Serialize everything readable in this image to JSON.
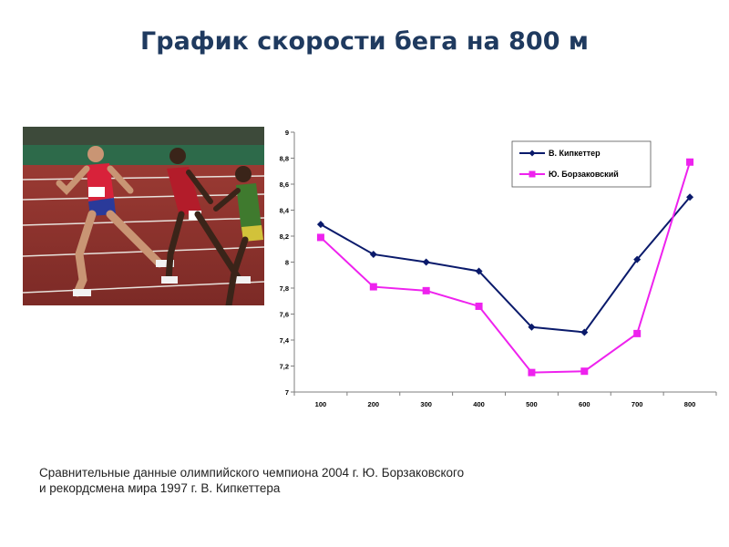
{
  "slide": {
    "title": "График скорости бега на 800 м",
    "caption_line1": "Сравнительные данные олимпийского чемпиона 2004 г. Ю. Борзаковского",
    "caption_line2": "и рекордсмена мира 1997 г. В. Кипкеттера"
  },
  "photo": {
    "description_icon": "runners-photo",
    "bib_numbers": [
      "840",
      "6"
    ]
  },
  "chart_data": {
    "type": "line",
    "title": "",
    "xlabel": "",
    "ylabel": "",
    "categories": [
      "100",
      "200",
      "300",
      "400",
      "500",
      "600",
      "700",
      "800"
    ],
    "ylim": [
      7,
      9
    ],
    "yticks": [
      "7",
      "7,2",
      "7,4",
      "7,6",
      "7,8",
      "8",
      "8,2",
      "8,4",
      "8,6",
      "8,8",
      "9"
    ],
    "grid": false,
    "legend_position": "top-right",
    "series": [
      {
        "name": "В. Кипкеттер",
        "color": "#0a1a6b",
        "marker": "diamond",
        "values": [
          8.29,
          8.06,
          8.0,
          7.93,
          7.5,
          7.46,
          8.02,
          8.5
        ]
      },
      {
        "name": "Ю. Борзаковский",
        "color": "#ee22ee",
        "marker": "square",
        "values": [
          8.19,
          7.81,
          7.78,
          7.66,
          7.15,
          7.16,
          7.45,
          8.77
        ]
      }
    ]
  }
}
